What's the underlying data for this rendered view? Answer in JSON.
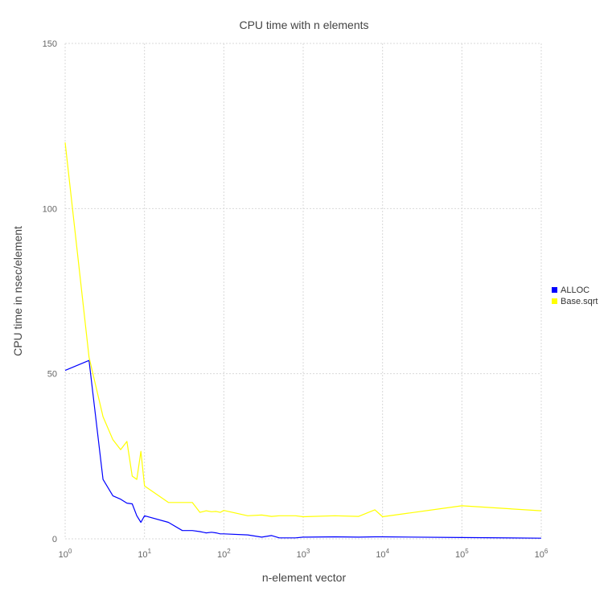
{
  "chart_data": {
    "type": "line",
    "title": "CPU time with n elements",
    "xlabel": "n-element vector",
    "ylabel": "CPU time in nsec/element",
    "x_scale": "log10",
    "xlim": [
      1,
      1000000
    ],
    "ylim": [
      0,
      150
    ],
    "x_ticks": [
      {
        "base": "10",
        "exp": "0"
      },
      {
        "base": "10",
        "exp": "1"
      },
      {
        "base": "10",
        "exp": "2"
      },
      {
        "base": "10",
        "exp": "3"
      },
      {
        "base": "10",
        "exp": "4"
      },
      {
        "base": "10",
        "exp": "5"
      },
      {
        "base": "10",
        "exp": "6"
      }
    ],
    "y_ticks": [
      "0",
      "50",
      "100",
      "150"
    ],
    "grid": true,
    "legend_position": "right",
    "series": [
      {
        "name": "ALLOC",
        "color": "#0000ff",
        "points": [
          [
            1,
            51
          ],
          [
            2,
            54
          ],
          [
            3,
            18
          ],
          [
            4,
            13
          ],
          [
            5,
            12
          ],
          [
            6,
            10.8
          ],
          [
            7,
            10.6
          ],
          [
            8,
            7
          ],
          [
            9,
            5
          ],
          [
            10,
            7
          ],
          [
            20,
            5
          ],
          [
            30,
            2.5
          ],
          [
            40,
            2.5
          ],
          [
            50,
            2.2
          ],
          [
            60,
            1.8
          ],
          [
            70,
            2
          ],
          [
            80,
            1.8
          ],
          [
            90,
            1.5
          ],
          [
            100,
            1.5
          ],
          [
            200,
            1.2
          ],
          [
            300,
            0.5
          ],
          [
            400,
            1
          ],
          [
            500,
            0.3
          ],
          [
            800,
            0.3
          ],
          [
            1000,
            0.5
          ],
          [
            2500,
            0.6
          ],
          [
            5000,
            0.5
          ],
          [
            8000,
            0.6
          ],
          [
            10000,
            0.6
          ],
          [
            100000,
            0.4
          ],
          [
            1000000,
            0.2
          ]
        ]
      },
      {
        "name": "Base.sqrt",
        "color": "#ffff00",
        "points": [
          [
            1,
            120
          ],
          [
            2,
            55
          ],
          [
            3,
            37
          ],
          [
            4,
            30
          ],
          [
            5,
            27
          ],
          [
            6,
            29.5
          ],
          [
            7,
            19
          ],
          [
            8,
            18
          ],
          [
            9,
            26.5
          ],
          [
            10,
            16
          ],
          [
            20,
            11
          ],
          [
            30,
            11
          ],
          [
            40,
            11
          ],
          [
            50,
            8
          ],
          [
            60,
            8.5
          ],
          [
            70,
            8.2
          ],
          [
            80,
            8.3
          ],
          [
            90,
            8
          ],
          [
            100,
            8.6
          ],
          [
            200,
            7
          ],
          [
            300,
            7.2
          ],
          [
            400,
            6.8
          ],
          [
            500,
            7
          ],
          [
            800,
            7
          ],
          [
            1000,
            6.7
          ],
          [
            2500,
            7
          ],
          [
            5000,
            6.8
          ],
          [
            8000,
            8.8
          ],
          [
            10000,
            6.7
          ],
          [
            100000,
            10
          ],
          [
            1000000,
            8.5
          ]
        ]
      }
    ]
  }
}
